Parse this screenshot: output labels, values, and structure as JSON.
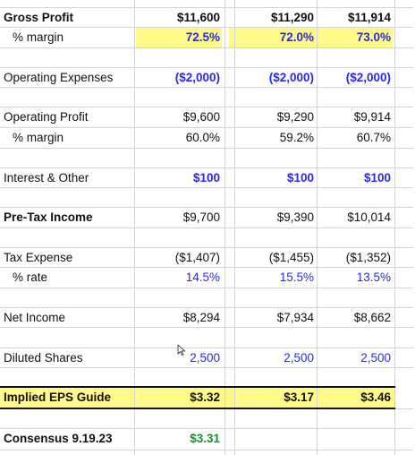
{
  "rows": {
    "gross_profit": {
      "label": "Gross Profit",
      "v1": "$11,600",
      "v2": "$11,290",
      "v3": "$11,914"
    },
    "gross_margin": {
      "label": "% margin",
      "v1": "72.5%",
      "v2": "72.0%",
      "v3": "73.0%"
    },
    "operating_expenses": {
      "label": "Operating Expenses",
      "v1": "($2,000)",
      "v2": "($2,000)",
      "v3": "($2,000)"
    },
    "operating_profit": {
      "label": "Operating Profit",
      "v1": "$9,600",
      "v2": "$9,290",
      "v3": "$9,914"
    },
    "operating_margin": {
      "label": "% margin",
      "v1": "60.0%",
      "v2": "59.2%",
      "v3": "60.7%"
    },
    "interest_other": {
      "label": "Interest & Other",
      "v1": "$100",
      "v2": "$100",
      "v3": "$100"
    },
    "pretax_income": {
      "label": "Pre-Tax Income",
      "v1": "$9,700",
      "v2": "$9,390",
      "v3": "$10,014"
    },
    "tax_expense": {
      "label": "Tax Expense",
      "v1": "($1,407)",
      "v2": "($1,455)",
      "v3": "($1,352)"
    },
    "tax_rate": {
      "label": "% rate",
      "v1": "14.5%",
      "v2": "15.5%",
      "v3": "13.5%"
    },
    "net_income": {
      "label": "Net Income",
      "v1": "$8,294",
      "v2": "$7,934",
      "v3": "$8,662"
    },
    "diluted_shares": {
      "label": "Diluted Shares",
      "v1": "2,500",
      "v2": "2,500",
      "v3": "2,500"
    },
    "implied_eps": {
      "label": "Implied EPS Guide",
      "v1": "$3.32",
      "v2": "$3.17",
      "v3": "$3.46"
    },
    "consensus": {
      "label": "Consensus 9.19.23",
      "v1": "$3.31"
    }
  },
  "colors": {
    "input_blue": "#2929e8",
    "highlight_yellow": "#fff98a",
    "consensus_green": "#14902d",
    "gridline": "#d4d4d4"
  },
  "icons": {
    "cursor": "mouse-pointer-icon"
  }
}
